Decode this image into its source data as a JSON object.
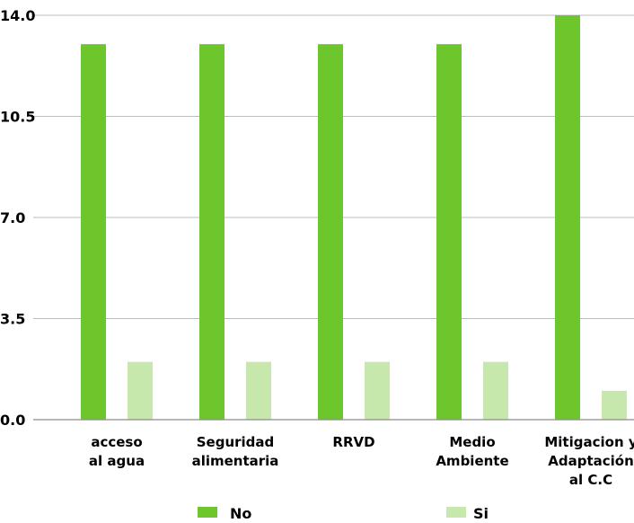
{
  "chart_data": {
    "type": "bar",
    "categories": [
      [
        "acceso",
        "al agua"
      ],
      [
        "Seguridad",
        "alimentaria"
      ],
      [
        "RRVD"
      ],
      [
        "Medio",
        "Ambiente"
      ],
      [
        "Mitigacion y",
        "Adaptación",
        "al C.C"
      ]
    ],
    "series": [
      {
        "name": "No",
        "color": "#6dc62b",
        "values": [
          13,
          13,
          13,
          13,
          14
        ]
      },
      {
        "name": "Si",
        "color": "#c6e8ad",
        "values": [
          2,
          2,
          2,
          2,
          1
        ]
      }
    ],
    "yticks": [
      "0.0",
      "3.5",
      "7.0",
      "10.5",
      "14.0"
    ],
    "ylim": [
      0,
      14
    ],
    "grid": true,
    "legend": "bottom"
  }
}
